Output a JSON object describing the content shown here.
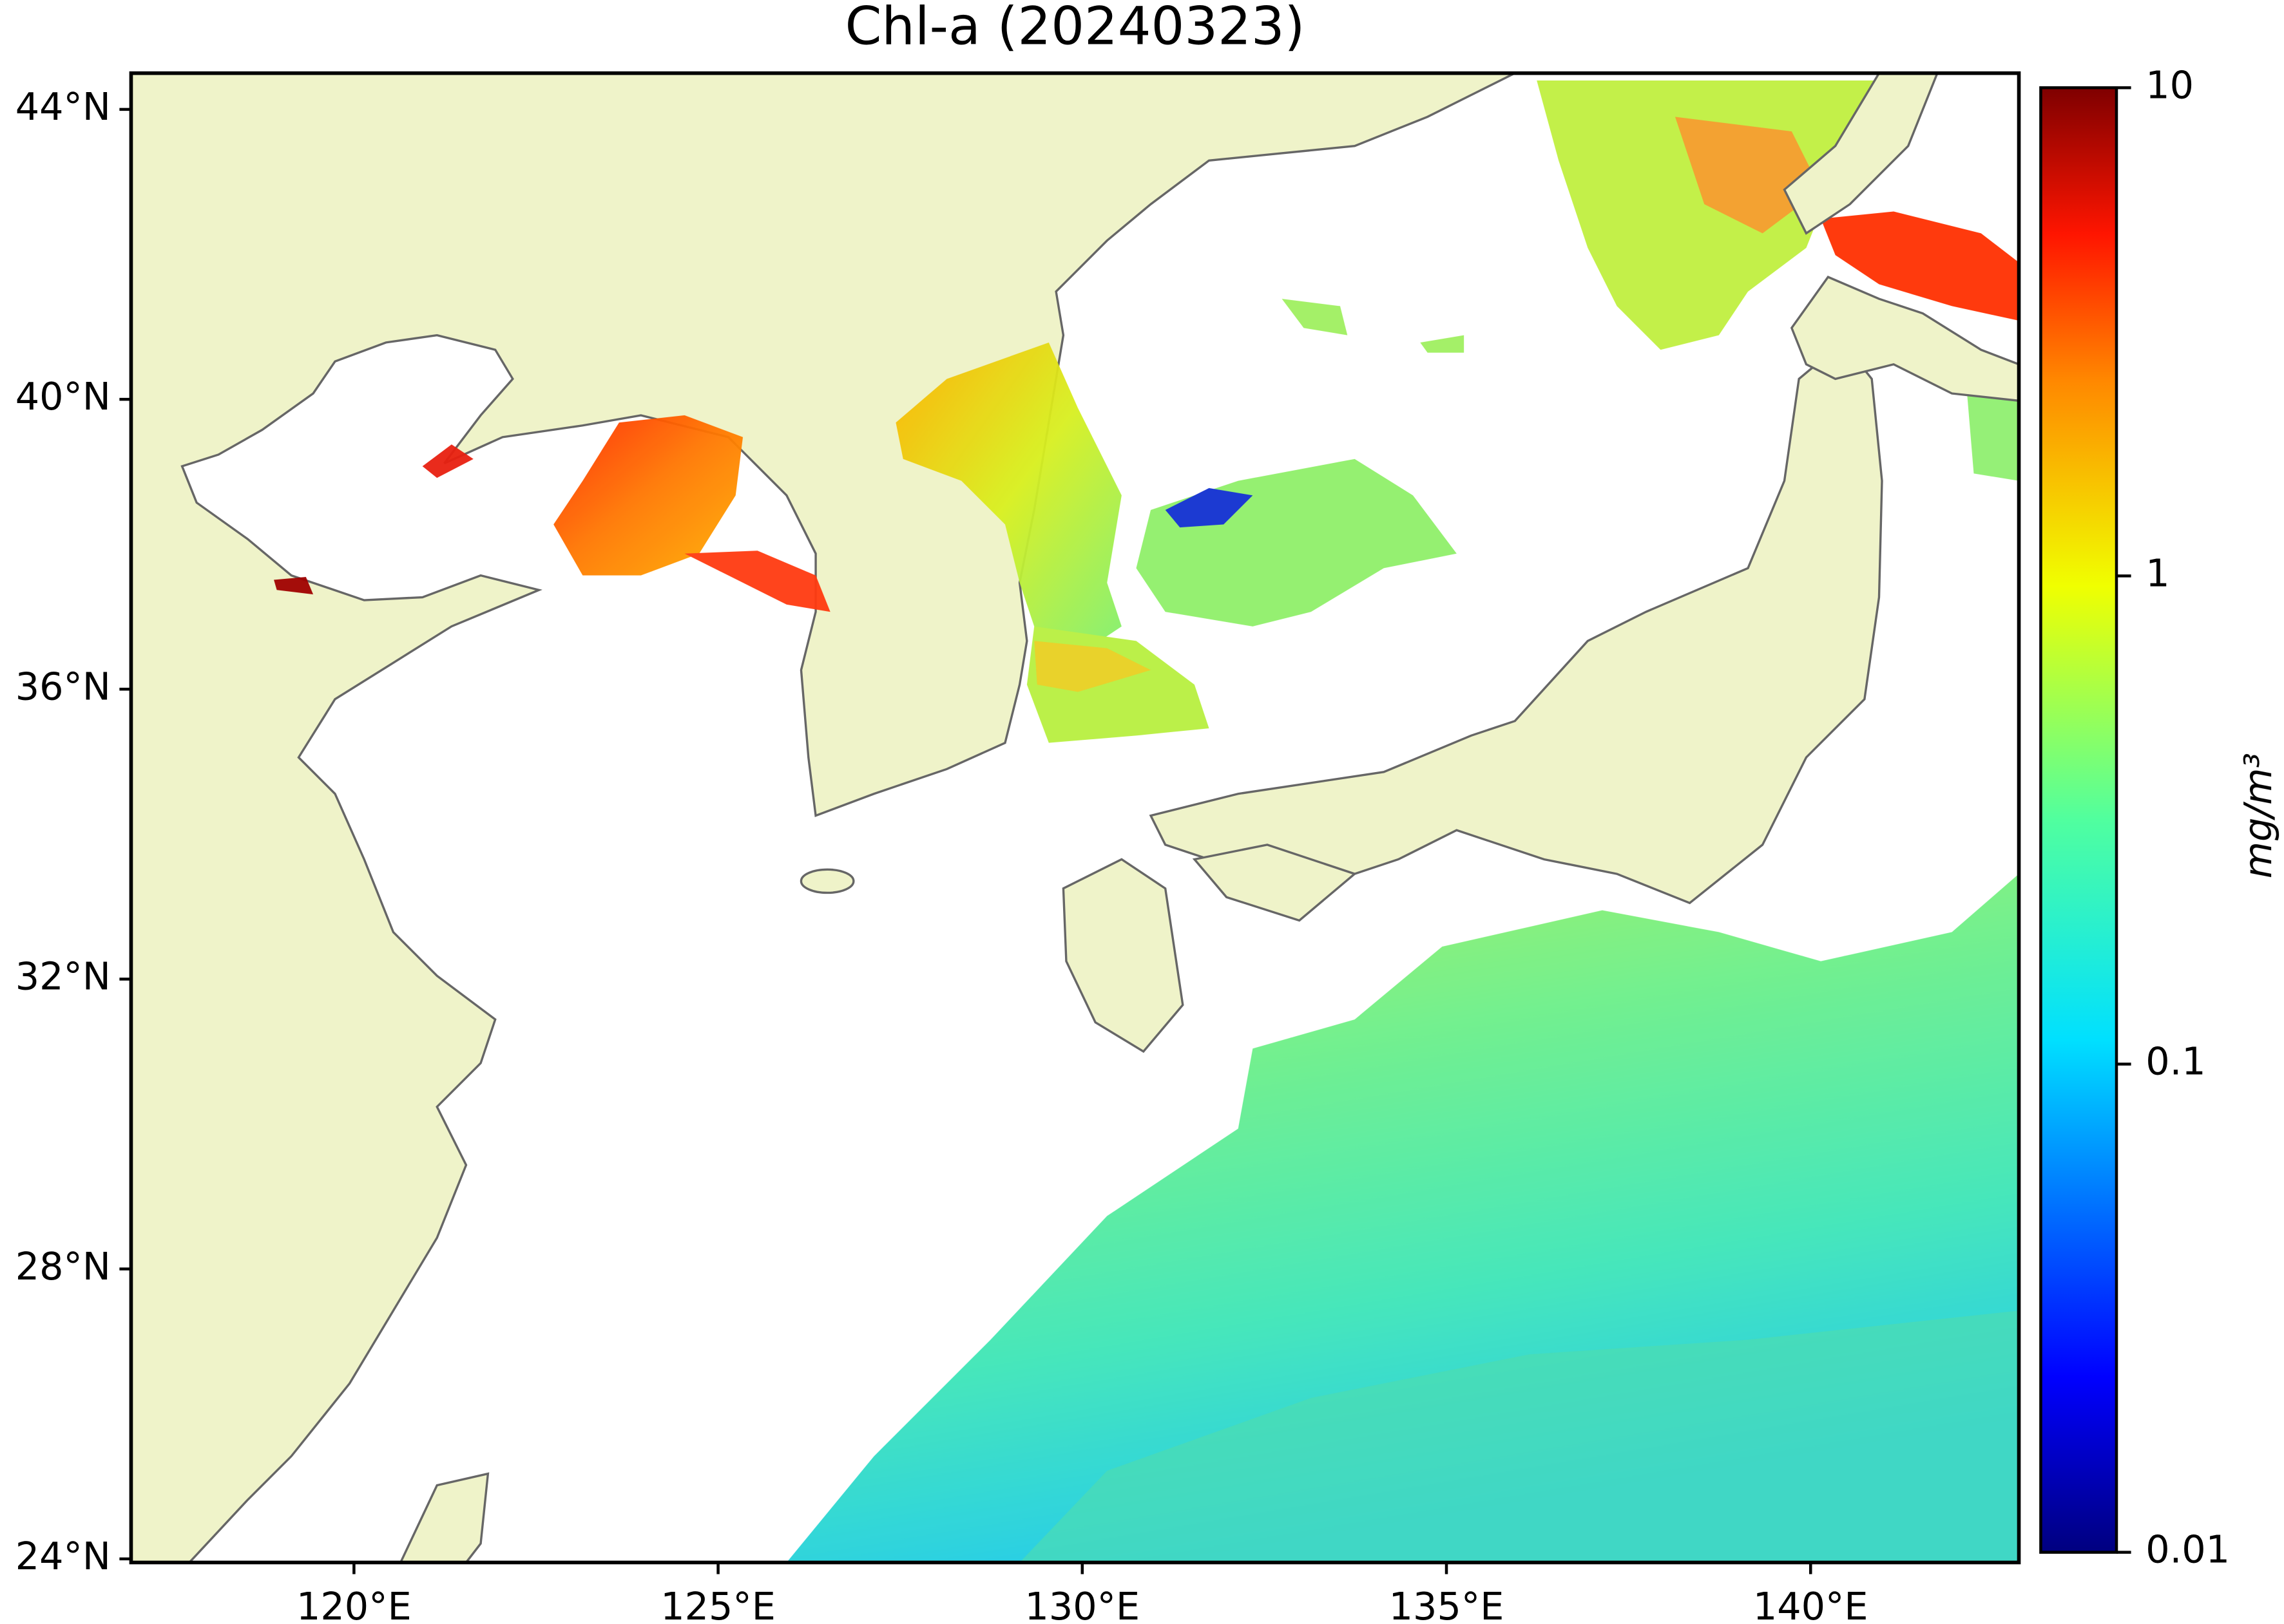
{
  "chart_data": {
    "type": "map",
    "title": "Chl-a (20240323)",
    "xlim": [
      116.94,
      142.86
    ],
    "ylim": [
      23.95,
      44.5
    ],
    "xticks": [
      {
        "value": 120,
        "label": "120°E"
      },
      {
        "value": 125,
        "label": "125°E"
      },
      {
        "value": 130,
        "label": "130°E"
      },
      {
        "value": 135,
        "label": "135°E"
      },
      {
        "value": 140,
        "label": "140°E"
      }
    ],
    "yticks": [
      {
        "value": 24,
        "label": "24°N"
      },
      {
        "value": 28,
        "label": "28°N"
      },
      {
        "value": 32,
        "label": "32°N"
      },
      {
        "value": 36,
        "label": "36°N"
      },
      {
        "value": 40,
        "label": "40°N"
      },
      {
        "value": 44,
        "label": "44°N"
      }
    ],
    "colorbar": {
      "label": "mg/m³",
      "scale": "log",
      "lim": [
        0.01,
        10
      ],
      "ticks": [
        0.01,
        0.1,
        1,
        10
      ]
    }
  }
}
